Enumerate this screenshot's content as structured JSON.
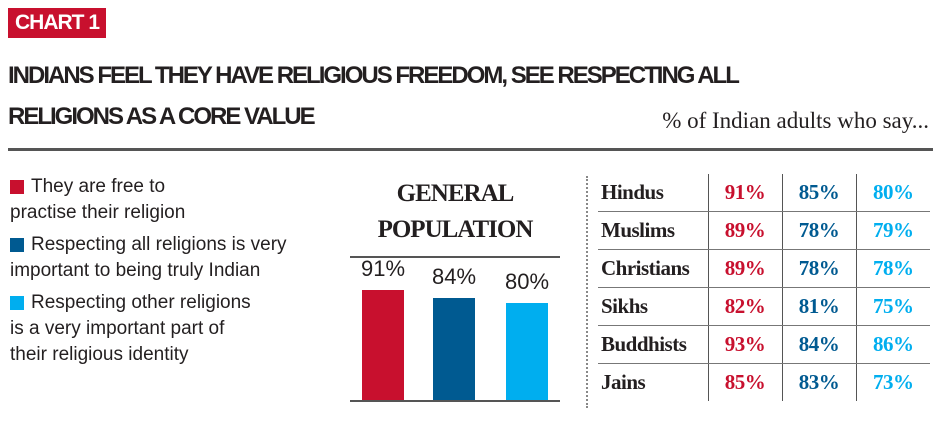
{
  "badge": "CHART 1",
  "title_lines": [
    "INDIANS FEEL THEY HAVE RELIGIOUS FREEDOM, SEE RESPECTING ALL",
    "RELIGIONS AS A CORE VALUE"
  ],
  "subtitle": "% of Indian adults who say...",
  "colors": {
    "red": "#c8102e",
    "dark_blue": "#005a91",
    "light_blue": "#00aeef"
  },
  "legend": [
    {
      "lines": [
        "They are free to",
        "practise their religion"
      ],
      "color": "#c8102e"
    },
    {
      "lines": [
        "Respecting all religions is very",
        "important to being truly Indian"
      ],
      "color": "#005a91"
    },
    {
      "lines": [
        "Respecting other religions",
        "is a very important part of",
        "their religious identity"
      ],
      "color": "#00aeef"
    }
  ],
  "chart_data": [
    {
      "type": "bar",
      "title": "GENERAL POPULATION",
      "title_lines": [
        "GENERAL",
        "POPULATION"
      ],
      "categories": [
        "They are free to practise their religion",
        "Respecting all religions is very important to being truly Indian",
        "Respecting other religions is a very important part of their religious identity"
      ],
      "values": [
        91,
        84,
        80
      ],
      "labels": [
        "91%",
        "84%",
        "80%"
      ],
      "colors": [
        "#c8102e",
        "#005a91",
        "#00aeef"
      ],
      "ylim": [
        0,
        100
      ]
    },
    {
      "type": "table",
      "rows": [
        {
          "group": "Hindus",
          "values": [
            "91%",
            "85%",
            "80%"
          ]
        },
        {
          "group": "Muslims",
          "values": [
            "89%",
            "78%",
            "79%"
          ]
        },
        {
          "group": "Christians",
          "values": [
            "89%",
            "78%",
            "78%"
          ]
        },
        {
          "group": "Sikhs",
          "values": [
            "82%",
            "81%",
            "75%"
          ]
        },
        {
          "group": "Buddhists",
          "values": [
            "93%",
            "84%",
            "86%"
          ]
        },
        {
          "group": "Jains",
          "values": [
            "85%",
            "83%",
            "73%"
          ]
        }
      ]
    }
  ]
}
